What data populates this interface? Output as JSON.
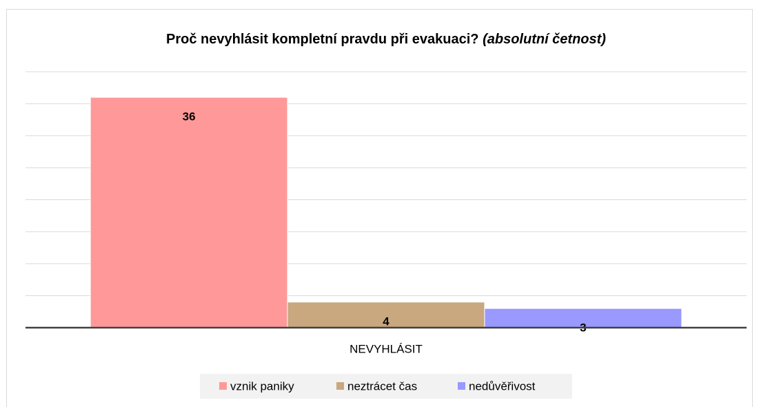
{
  "chart_data": {
    "type": "bar",
    "title": "Proč nevyhlásit kompletní pravdu při evakuaci?",
    "title_suffix": "(absolutní četnost)",
    "categories": [
      "NEVYHLÁSIT"
    ],
    "series": [
      {
        "name": "vznik paniky",
        "color": "#ff9999",
        "values": [
          36
        ]
      },
      {
        "name": "neztrácet čas",
        "color": "#c9a77f",
        "values": [
          4
        ]
      },
      {
        "name": "nedůvěřivost",
        "color": "#9999ff",
        "values": [
          3
        ]
      }
    ],
    "ylim": [
      0,
      40
    ],
    "yticks": [
      0,
      5,
      10,
      15,
      20,
      25,
      30,
      35,
      40
    ],
    "grid": true,
    "legend": "bottom"
  }
}
